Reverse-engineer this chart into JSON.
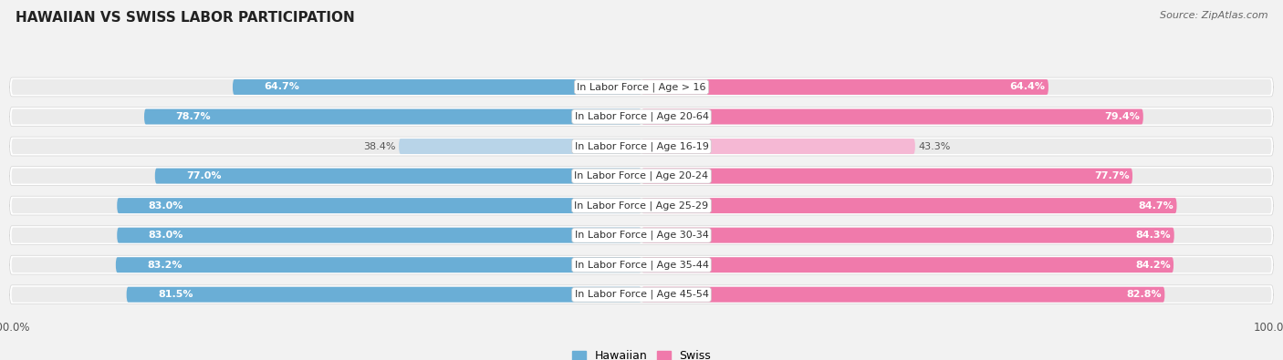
{
  "title": "HAWAIIAN VS SWISS LABOR PARTICIPATION",
  "source": "Source: ZipAtlas.com",
  "categories": [
    "In Labor Force | Age > 16",
    "In Labor Force | Age 20-64",
    "In Labor Force | Age 16-19",
    "In Labor Force | Age 20-24",
    "In Labor Force | Age 25-29",
    "In Labor Force | Age 30-34",
    "In Labor Force | Age 35-44",
    "In Labor Force | Age 45-54"
  ],
  "hawaiian_values": [
    64.7,
    78.7,
    38.4,
    77.0,
    83.0,
    83.0,
    83.2,
    81.5
  ],
  "swiss_values": [
    64.4,
    79.4,
    43.3,
    77.7,
    84.7,
    84.3,
    84.2,
    82.8
  ],
  "hawaiian_color": "#6aaed6",
  "hawaiian_color_light": "#b8d4e8",
  "swiss_color": "#f07aab",
  "swiss_color_light": "#f5b8d4",
  "row_bg_color": "#e8e8e8",
  "bar_track_color": "#f5f5f5",
  "background_color": "#f2f2f2",
  "title_fontsize": 11,
  "label_fontsize": 8,
  "value_fontsize": 8,
  "legend_fontsize": 9,
  "max_value": 100.0
}
